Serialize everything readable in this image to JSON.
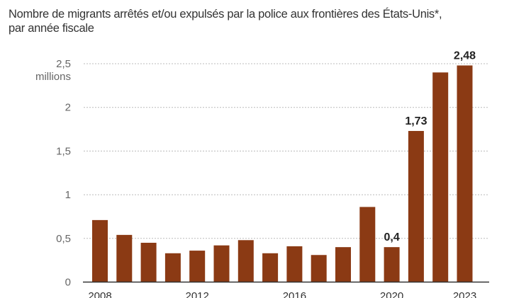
{
  "chart_data": {
    "type": "bar",
    "subtitle_line1": "Nombre de migrants arrêtés et/ou expulsés par la police aux frontières des États-Unis*,",
    "subtitle_line2": "par année fiscale",
    "ylabel": "millions",
    "categories": [
      "2008",
      "2009",
      "2010",
      "2011",
      "2012",
      "2013",
      "2014",
      "2015",
      "2016",
      "2017",
      "2018",
      "2019",
      "2020",
      "2021",
      "2022",
      "2023"
    ],
    "values": [
      0.71,
      0.54,
      0.45,
      0.33,
      0.36,
      0.42,
      0.48,
      0.33,
      0.41,
      0.31,
      0.4,
      0.86,
      0.4,
      1.73,
      2.4,
      2.48
    ],
    "data_labels": {
      "2020": "0,4",
      "2021": "1,73",
      "2023": "2,48"
    },
    "x_tick_labels": [
      "2008",
      "2012",
      "2016",
      "2020",
      "2023"
    ],
    "y_ticks": [
      0,
      0.5,
      1,
      1.5,
      2,
      2.5
    ],
    "y_tick_labels": [
      "0",
      "0,5",
      "1",
      "1,5",
      "2",
      "2,5"
    ],
    "ylim": [
      0,
      2.5
    ],
    "grid": "horizontal dotted",
    "bar_color": "#8b3a14"
  }
}
